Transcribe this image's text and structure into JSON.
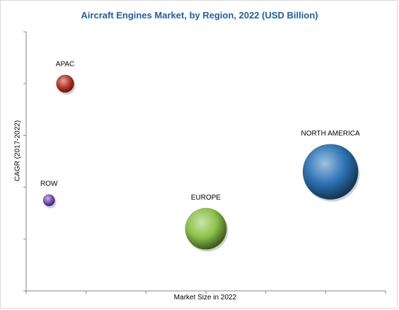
{
  "chart_data": {
    "type": "bubble",
    "title": "Aircraft Engines Market, by Region, 2022  (USD Billion)",
    "xlabel": "Market Size in 2022",
    "ylabel": "CAGR (2017-2022)",
    "xlim": [
      0,
      6
    ],
    "ylim": [
      0,
      5
    ],
    "grid": false,
    "series": [
      {
        "name": "APAC",
        "x": 0.65,
        "y": 4.0,
        "size": 0.9,
        "color": "#c0392b"
      },
      {
        "name": "ROW",
        "x": 0.38,
        "y": 1.75,
        "size": 0.6,
        "color": "#7e57c2"
      },
      {
        "name": "EUROPE",
        "x": 3.0,
        "y": 1.2,
        "size": 2.1,
        "color": "#8bc34a"
      },
      {
        "name": "NORTH AMERICA",
        "x": 5.08,
        "y": 2.3,
        "size": 2.8,
        "color": "#2e75b6"
      }
    ]
  }
}
